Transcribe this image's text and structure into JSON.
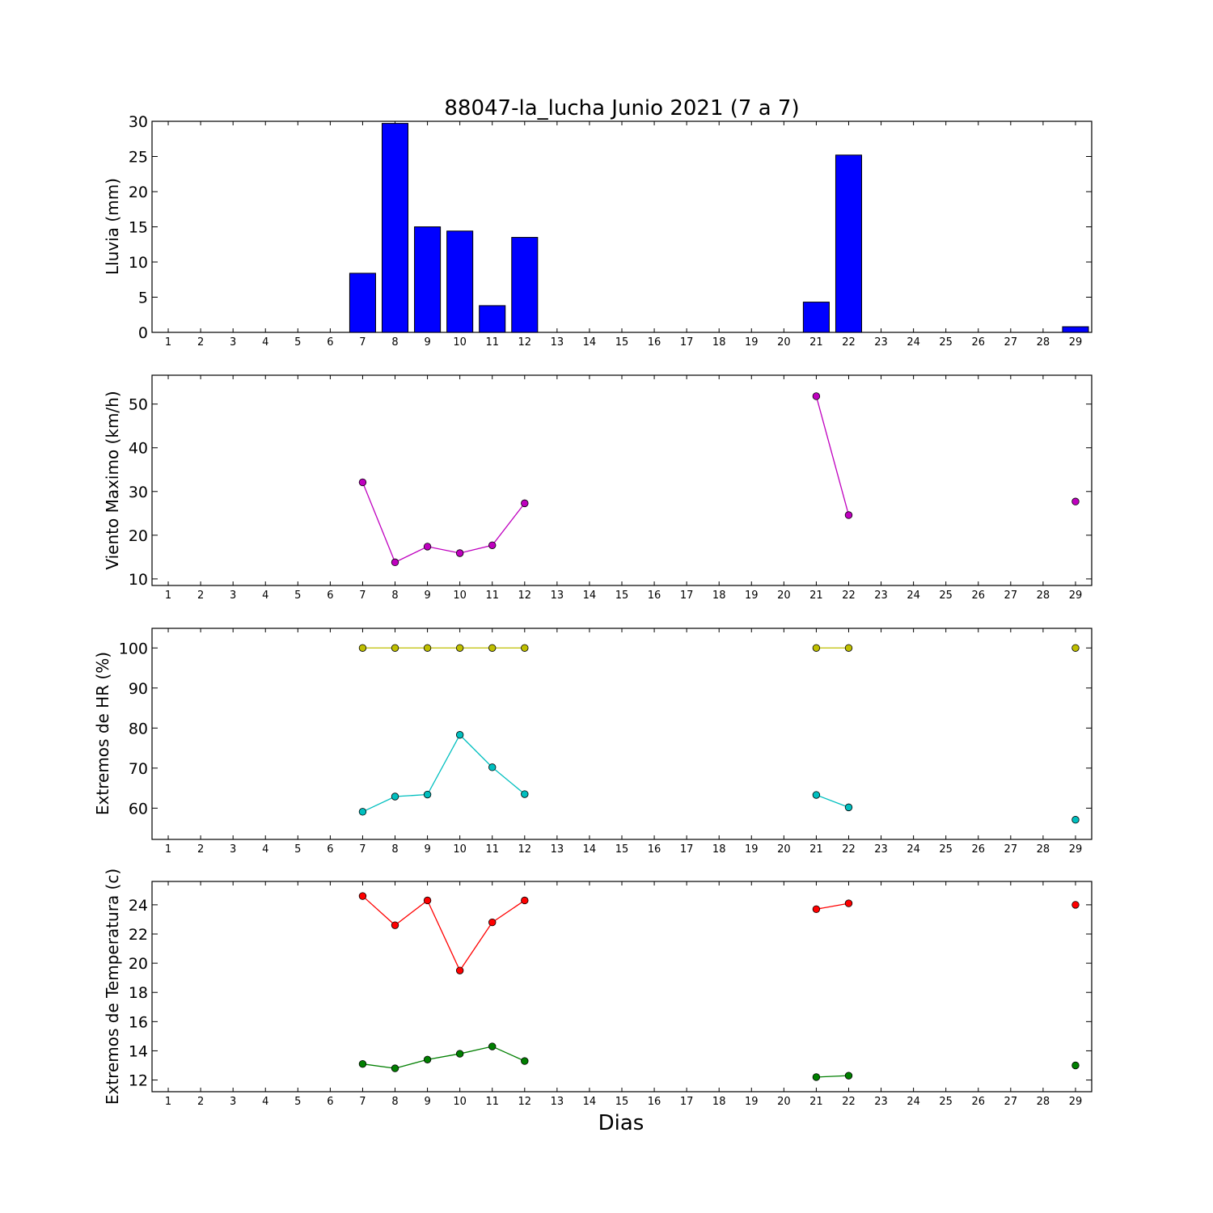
{
  "chart_data": [
    {
      "type": "bar",
      "title": "88047-la_lucha Junio 2021  (7 a 7)",
      "ylabel": "Lluvia (mm)",
      "xlabel": "",
      "x_ticks": [
        1,
        2,
        3,
        4,
        5,
        6,
        7,
        8,
        9,
        10,
        11,
        12,
        13,
        14,
        15,
        16,
        17,
        18,
        19,
        20,
        21,
        22,
        23,
        24,
        25,
        26,
        27,
        28,
        29
      ],
      "ylim": [
        0,
        30
      ],
      "y_ticks": [
        0,
        5,
        10,
        15,
        20,
        25,
        30
      ],
      "grid": false,
      "series": [
        {
          "color": "#0000ff",
          "points": [
            [
              7,
              8.4
            ],
            [
              8,
              29.7
            ],
            [
              9,
              15.0
            ],
            [
              10,
              14.4
            ],
            [
              11,
              3.8
            ],
            [
              12,
              13.5
            ],
            [
              21,
              4.3
            ],
            [
              22,
              25.2
            ],
            [
              29,
              0.8
            ]
          ]
        }
      ]
    },
    {
      "type": "line",
      "ylabel": "Viento Maximo (km/h)",
      "xlabel": "",
      "x_ticks": [
        1,
        2,
        3,
        4,
        5,
        6,
        7,
        8,
        9,
        10,
        11,
        12,
        13,
        14,
        15,
        16,
        17,
        18,
        19,
        20,
        21,
        22,
        23,
        24,
        25,
        26,
        27,
        28,
        29
      ],
      "ylim": [
        8.5,
        56.6
      ],
      "y_ticks": [
        10,
        20,
        30,
        40,
        50
      ],
      "grid": false,
      "series": [
        {
          "color": "#bf00bf",
          "segments": [
            [
              [
                7,
                32.1
              ],
              [
                8,
                13.8
              ],
              [
                9,
                17.4
              ],
              [
                10,
                15.9
              ],
              [
                11,
                17.7
              ],
              [
                12,
                27.3
              ]
            ],
            [
              [
                21,
                51.8
              ],
              [
                22,
                24.6
              ]
            ],
            [
              [
                29,
                27.7
              ]
            ]
          ]
        }
      ]
    },
    {
      "type": "line",
      "ylabel": "Extremos de HR (%)",
      "xlabel": "",
      "x_ticks": [
        1,
        2,
        3,
        4,
        5,
        6,
        7,
        8,
        9,
        10,
        11,
        12,
        13,
        14,
        15,
        16,
        17,
        18,
        19,
        20,
        21,
        22,
        23,
        24,
        25,
        26,
        27,
        28,
        29
      ],
      "ylim": [
        52.2,
        104.9
      ],
      "y_ticks": [
        60,
        70,
        80,
        90,
        100
      ],
      "grid": false,
      "series": [
        {
          "color": "#bfbf00",
          "segments": [
            [
              [
                7,
                100
              ],
              [
                8,
                100
              ],
              [
                9,
                100
              ],
              [
                10,
                100
              ],
              [
                11,
                100
              ],
              [
                12,
                100
              ]
            ],
            [
              [
                21,
                100
              ],
              [
                22,
                100
              ]
            ],
            [
              [
                29,
                100
              ]
            ]
          ]
        },
        {
          "color": "#00bfbf",
          "segments": [
            [
              [
                7,
                59.1
              ],
              [
                8,
                62.9
              ],
              [
                9,
                63.4
              ],
              [
                10,
                78.3
              ],
              [
                11,
                70.2
              ],
              [
                12,
                63.5
              ]
            ],
            [
              [
                21,
                63.3
              ],
              [
                22,
                60.2
              ]
            ],
            [
              [
                29,
                57.1
              ]
            ]
          ]
        }
      ]
    },
    {
      "type": "line",
      "ylabel": "Extremos de Temperatura (c)",
      "xlabel": "Dias",
      "x_ticks": [
        1,
        2,
        3,
        4,
        5,
        6,
        7,
        8,
        9,
        10,
        11,
        12,
        13,
        14,
        15,
        16,
        17,
        18,
        19,
        20,
        21,
        22,
        23,
        24,
        25,
        26,
        27,
        28,
        29
      ],
      "ylim": [
        11.2,
        25.6
      ],
      "y_ticks": [
        12,
        14,
        16,
        18,
        20,
        22,
        24
      ],
      "grid": false,
      "series": [
        {
          "color": "#ff0000",
          "segments": [
            [
              [
                7,
                24.6
              ],
              [
                8,
                22.6
              ],
              [
                9,
                24.3
              ],
              [
                10,
                19.5
              ],
              [
                11,
                22.8
              ],
              [
                12,
                24.3
              ]
            ],
            [
              [
                21,
                23.7
              ],
              [
                22,
                24.1
              ]
            ],
            [
              [
                29,
                24.0
              ]
            ]
          ]
        },
        {
          "color": "#007f00",
          "segments": [
            [
              [
                7,
                13.1
              ],
              [
                8,
                12.8
              ],
              [
                9,
                13.4
              ],
              [
                10,
                13.8
              ],
              [
                11,
                14.3
              ],
              [
                12,
                13.3
              ]
            ],
            [
              [
                21,
                12.2
              ],
              [
                22,
                12.3
              ]
            ],
            [
              [
                29,
                13.0
              ]
            ]
          ]
        }
      ]
    }
  ]
}
